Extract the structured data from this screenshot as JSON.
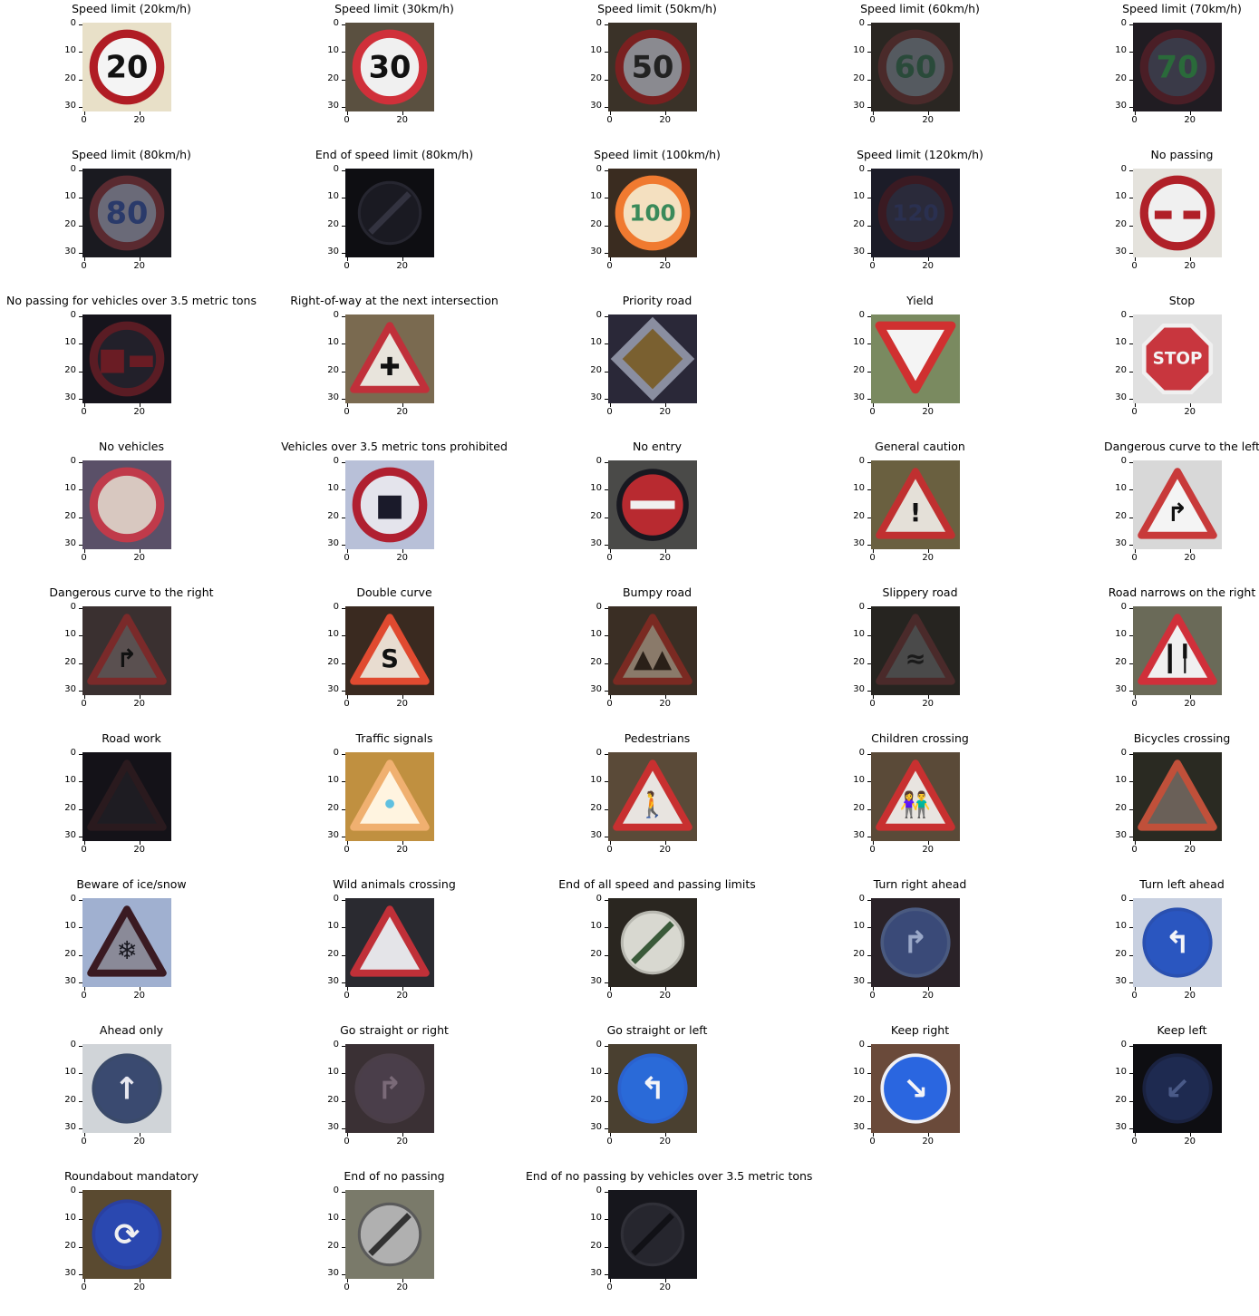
{
  "axes": {
    "y_ticks": [
      "0",
      "10",
      "20",
      "30"
    ],
    "x_ticks": [
      "0",
      "20"
    ]
  },
  "signs": [
    {
      "title": "Speed limit (20km/h)",
      "bg": "#e8e0c8",
      "icon": "circle-sign-icon",
      "shape": "circle",
      "border": "#b01c24",
      "fill": "#f4f4f4",
      "text": "20",
      "textColor": "#111111"
    },
    {
      "title": "Speed limit (30km/h)",
      "bg": "#5a5040",
      "icon": "circle-sign-icon",
      "shape": "circle",
      "border": "#d0303a",
      "fill": "#f0f0f0",
      "text": "30",
      "textColor": "#111111"
    },
    {
      "title": "Speed limit (50km/h)",
      "bg": "#3a3228",
      "icon": "circle-sign-icon",
      "shape": "circle",
      "border": "#7a2020",
      "fill": "#8a8a90",
      "text": "50",
      "textColor": "#222222"
    },
    {
      "title": "Speed limit (60km/h)",
      "bg": "#2a2622",
      "icon": "circle-sign-icon",
      "shape": "circle",
      "border": "#4a2a2a",
      "fill": "#555a60",
      "text": "60",
      "textColor": "#2a4a3a"
    },
    {
      "title": "Speed limit (70km/h)",
      "bg": "#201c22",
      "icon": "circle-sign-icon",
      "shape": "circle",
      "border": "#4a1e26",
      "fill": "#3a3a48",
      "text": "70",
      "textColor": "#2a6a3a"
    },
    {
      "title": "Speed limit (80km/h)",
      "bg": "#1a1a20",
      "icon": "circle-sign-icon",
      "shape": "circle",
      "border": "#5a2a30",
      "fill": "#6a6a78",
      "text": "80",
      "textColor": "#2a3a6a"
    },
    {
      "title": "End of speed limit (80km/h)",
      "bg": "#0e0e12",
      "icon": "end-sign-icon",
      "shape": "endcircle",
      "border": "#262630",
      "fill": "#1a1a22",
      "text": "",
      "textColor": "#333340"
    },
    {
      "title": "Speed limit (100km/h)",
      "bg": "#3a2c20",
      "icon": "circle-sign-icon",
      "shape": "circle",
      "border": "#f07a30",
      "fill": "#f4e0c0",
      "text": "100",
      "textColor": "#3a8a5a"
    },
    {
      "title": "Speed limit (120km/h)",
      "bg": "#1c1c28",
      "icon": "circle-sign-icon",
      "shape": "circle",
      "border": "#3a1a22",
      "fill": "#2a2a3a",
      "text": "120",
      "textColor": "#2a3050"
    },
    {
      "title": "No passing",
      "bg": "#e4e2dc",
      "icon": "no-passing-icon",
      "shape": "circle",
      "border": "#b02028",
      "fill": "#f0f0f0",
      "text": "▬ ▬",
      "textColor": "#b02028"
    },
    {
      "title": "No passing for vehicles over 3.5 metric tons",
      "bg": "#16141c",
      "icon": "no-passing-truck-icon",
      "shape": "circle",
      "border": "#5a1c24",
      "fill": "#22202a",
      "text": "■▬",
      "textColor": "#6a1c24"
    },
    {
      "title": "Right-of-way at the next intersection",
      "bg": "#7a6a50",
      "icon": "triangle-sign-icon",
      "shape": "triangle",
      "border": "#c0303a",
      "fill": "#e8e4dc",
      "text": "✚",
      "textColor": "#111111"
    },
    {
      "title": "Priority road",
      "bg": "#2a2838",
      "icon": "priority-road-icon",
      "shape": "diamond",
      "border": "#8a8ea0",
      "fill": "#7a6030",
      "text": "",
      "textColor": "#000000"
    },
    {
      "title": "Yield",
      "bg": "#7a8a60",
      "icon": "yield-icon",
      "shape": "invtriangle",
      "border": "#d03030",
      "fill": "#f4f4f4",
      "text": "",
      "textColor": "#000000"
    },
    {
      "title": "Stop",
      "bg": "#e0e0e0",
      "icon": "stop-icon",
      "shape": "octagon",
      "border": "#f0f0f0",
      "fill": "#c8363e",
      "text": "STOP",
      "textColor": "#f4f4f4"
    },
    {
      "title": "No vehicles",
      "bg": "#5a5068",
      "icon": "no-vehicles-icon",
      "shape": "circle",
      "border": "#c03a4a",
      "fill": "#d8c8c0",
      "text": "",
      "textColor": "#000000"
    },
    {
      "title": "Vehicles over 3.5 metric tons prohibited",
      "bg": "#b8c0d8",
      "icon": "no-trucks-icon",
      "shape": "circle",
      "border": "#b02030",
      "fill": "#e4e4ec",
      "text": "■",
      "textColor": "#1a1a2a"
    },
    {
      "title": "No entry",
      "bg": "#4a4a48",
      "icon": "no-entry-icon",
      "shape": "noentry",
      "border": "#181820",
      "fill": "#b82a30",
      "text": "",
      "textColor": "#f0f0f0"
    },
    {
      "title": "General caution",
      "bg": "#6a6040",
      "icon": "caution-icon",
      "shape": "triangle",
      "border": "#c03030",
      "fill": "#e4e0d8",
      "text": "!",
      "textColor": "#111111"
    },
    {
      "title": "Dangerous curve to the left",
      "bg": "#d8d8d8",
      "icon": "curve-icon",
      "shape": "triangle",
      "border": "#c83a3a",
      "fill": "#f4f4f4",
      "text": "↱",
      "textColor": "#111111"
    },
    {
      "title": "Dangerous curve to the right",
      "bg": "#3a3030",
      "icon": "curve-icon",
      "shape": "triangle",
      "border": "#7a2a2a",
      "fill": "#5a5050",
      "text": "↱",
      "textColor": "#111111"
    },
    {
      "title": "Double curve",
      "bg": "#3a2a20",
      "icon": "double-curve-icon",
      "shape": "triangle",
      "border": "#e04a30",
      "fill": "#e8dcd0",
      "text": "S",
      "textColor": "#111111"
    },
    {
      "title": "Bumpy road",
      "bg": "#3a2e24",
      "icon": "bumpy-road-icon",
      "shape": "triangle",
      "border": "#7a2a22",
      "fill": "#8a7a6a",
      "text": "▲▲",
      "textColor": "#2a2018"
    },
    {
      "title": "Slippery road",
      "bg": "#262420",
      "icon": "slippery-road-icon",
      "shape": "triangle",
      "border": "#4a2a2a",
      "fill": "#4a4a4a",
      "text": "≈",
      "textColor": "#1a1a1a"
    },
    {
      "title": "Road narrows on the right",
      "bg": "#6a6a58",
      "icon": "narrows-icon",
      "shape": "triangle",
      "border": "#d0303a",
      "fill": "#f0f0f0",
      "text": "┃╿",
      "textColor": "#111111"
    },
    {
      "title": "Road work",
      "bg": "#141218",
      "icon": "road-work-icon",
      "shape": "triangle",
      "border": "#2a1a1e",
      "fill": "#1e1c22",
      "text": "",
      "textColor": "#101010"
    },
    {
      "title": "Traffic signals",
      "bg": "#c09040",
      "icon": "traffic-signals-icon",
      "shape": "triangle",
      "border": "#f0b070",
      "fill": "#fff4e0",
      "text": "•",
      "textColor": "#60c0e0"
    },
    {
      "title": "Pedestrians",
      "bg": "#5a4a38",
      "icon": "pedestrians-icon",
      "shape": "triangle",
      "border": "#c83030",
      "fill": "#e8e4e0",
      "text": "🚶",
      "textColor": "#111111"
    },
    {
      "title": "Children crossing",
      "bg": "#5a4a38",
      "icon": "children-crossing-icon",
      "shape": "triangle",
      "border": "#c83030",
      "fill": "#e8e4e0",
      "text": "👫",
      "textColor": "#111111"
    },
    {
      "title": "Bicycles crossing",
      "bg": "#2a2a22",
      "icon": "bicycles-crossing-icon",
      "shape": "triangle",
      "border": "#c0503a",
      "fill": "#6a6058",
      "text": "",
      "textColor": "#222222"
    },
    {
      "title": "Beware of ice/snow",
      "bg": "#a0b0d0",
      "icon": "ice-snow-icon",
      "shape": "triangle",
      "border": "#3a1a22",
      "fill": "#8a8a98",
      "text": "❄",
      "textColor": "#1a1a22"
    },
    {
      "title": "Wild animals crossing",
      "bg": "#2a2a30",
      "icon": "wild-animals-icon",
      "shape": "triangle",
      "border": "#c03038",
      "fill": "#e4e4e8",
      "text": "",
      "textColor": "#111111"
    },
    {
      "title": "End of all speed and passing limits",
      "bg": "#2a2620",
      "icon": "end-limits-icon",
      "shape": "endcircle",
      "border": "#b8b8b0",
      "fill": "#d8d8d0",
      "text": "",
      "textColor": "#3a5a3a"
    },
    {
      "title": "Turn right ahead",
      "bg": "#2a2228",
      "icon": "turn-right-icon",
      "shape": "bluecircle",
      "border": "#4a5a80",
      "fill": "#3a4a78",
      "text": "↱",
      "textColor": "#9aa8c8"
    },
    {
      "title": "Turn left ahead",
      "bg": "#c8d0e0",
      "icon": "turn-left-icon",
      "shape": "bluecircle",
      "border": "#2a50b0",
      "fill": "#2a56c0",
      "text": "↰",
      "textColor": "#f4f4f8"
    },
    {
      "title": "Ahead only",
      "bg": "#d0d4d8",
      "icon": "ahead-only-icon",
      "shape": "bluecircle",
      "border": "#3a4a6a",
      "fill": "#3a4a70",
      "text": "↑",
      "textColor": "#e8e8f0"
    },
    {
      "title": "Go straight or right",
      "bg": "#3a3034",
      "icon": "straight-right-icon",
      "shape": "bluecircle",
      "border": "#4a3e48",
      "fill": "#4a3e4a",
      "text": "↱",
      "textColor": "#7a6a78"
    },
    {
      "title": "Go straight or left",
      "bg": "#4a4030",
      "icon": "straight-left-icon",
      "shape": "bluecircle",
      "border": "#2a62d0",
      "fill": "#2a6ad8",
      "text": "↰",
      "textColor": "#f4f4f8"
    },
    {
      "title": "Keep right",
      "bg": "#6a4a3a",
      "icon": "keep-right-icon",
      "shape": "bluecircle",
      "border": "#f0f0f4",
      "fill": "#2a66e0",
      "text": "↘",
      "textColor": "#f4f4f8"
    },
    {
      "title": "Keep left",
      "bg": "#0e0e12",
      "icon": "keep-left-icon",
      "shape": "bluecircle",
      "border": "#1a2240",
      "fill": "#1e2a50",
      "text": "↙",
      "textColor": "#4a5a88"
    },
    {
      "title": "Roundabout mandatory",
      "bg": "#5a4a30",
      "icon": "roundabout-icon",
      "shape": "bluecircle",
      "border": "#2a40a0",
      "fill": "#2a48b0",
      "text": "⟳",
      "textColor": "#f0f0f0"
    },
    {
      "title": "End of no passing",
      "bg": "#7a7a6a",
      "icon": "end-no-passing-icon",
      "shape": "endcircle",
      "border": "#5a5a5a",
      "fill": "#b0b0b0",
      "text": "",
      "textColor": "#333333"
    },
    {
      "title": "End of no passing by vehicles over 3.5 metric tons",
      "bg": "#16161c",
      "icon": "end-no-passing-truck-icon",
      "shape": "endcircle",
      "border": "#303038",
      "fill": "#26262e",
      "text": "",
      "textColor": "#111116"
    }
  ]
}
